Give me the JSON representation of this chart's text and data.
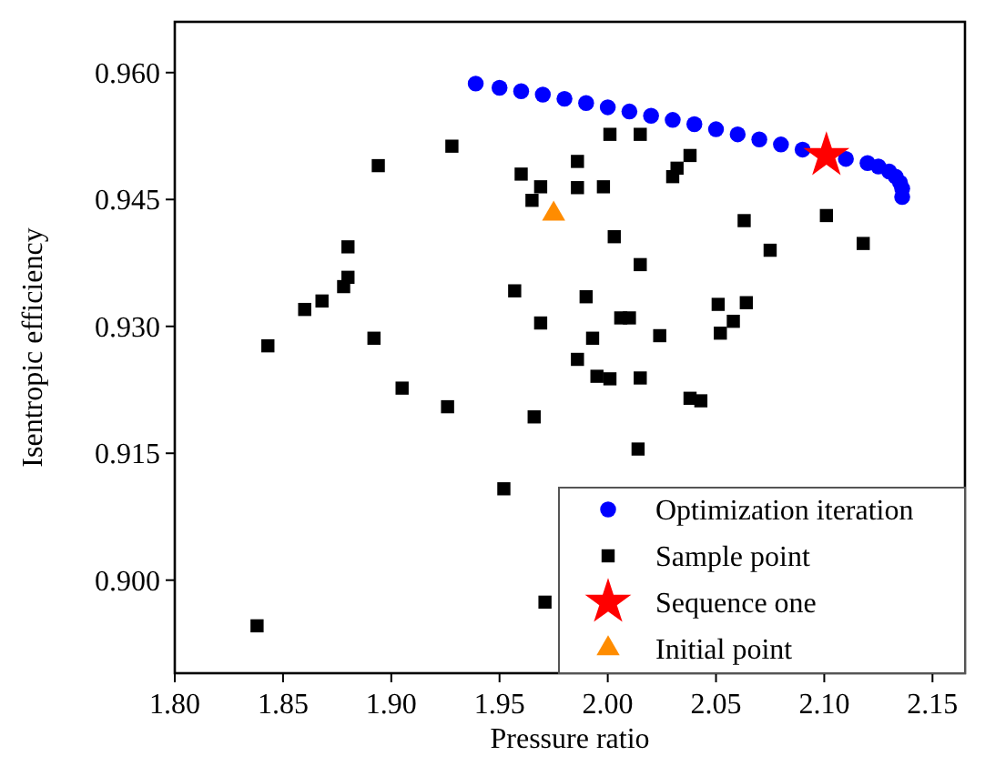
{
  "chart_data": {
    "type": "scatter",
    "xlabel": "Pressure ratio",
    "ylabel": "Isentropic efficiency",
    "xlim": [
      1.8,
      2.165
    ],
    "ylim": [
      0.889,
      0.966
    ],
    "xticks": [
      {
        "value": 1.8,
        "label": "1.80"
      },
      {
        "value": 1.85,
        "label": "1.85"
      },
      {
        "value": 1.9,
        "label": "1.90"
      },
      {
        "value": 1.95,
        "label": "1.95"
      },
      {
        "value": 2.0,
        "label": "2.00"
      },
      {
        "value": 2.05,
        "label": "2.05"
      },
      {
        "value": 2.1,
        "label": "2.10"
      },
      {
        "value": 2.15,
        "label": "2.15"
      }
    ],
    "yticks": [
      {
        "value": 0.9,
        "label": "0.900"
      },
      {
        "value": 0.915,
        "label": "0.915"
      },
      {
        "value": 0.93,
        "label": "0.930"
      },
      {
        "value": 0.945,
        "label": "0.945"
      },
      {
        "value": 0.96,
        "label": "0.960"
      }
    ],
    "grid": false,
    "legend": "bottom right",
    "series": [
      {
        "name": "Optimization iteration",
        "color": "#0000ff",
        "marker": "circle",
        "x": [
          1.939,
          1.95,
          1.96,
          1.97,
          1.98,
          1.99,
          2.0,
          2.01,
          2.02,
          2.03,
          2.04,
          2.05,
          2.06,
          2.07,
          2.08,
          2.09,
          2.11,
          2.12,
          2.125,
          2.13,
          2.133,
          2.135,
          2.136,
          2.136
        ],
        "values": [
          0.9587,
          0.9582,
          0.9578,
          0.9574,
          0.9569,
          0.9564,
          0.9559,
          0.9554,
          0.9549,
          0.9544,
          0.9539,
          0.9533,
          0.9527,
          0.9521,
          0.9515,
          0.9509,
          0.9498,
          0.9493,
          0.9489,
          0.9483,
          0.9477,
          0.947,
          0.9463,
          0.9453
        ]
      },
      {
        "name": "Sample point",
        "color": "#000000",
        "marker": "square",
        "x": [
          1.928,
          1.894,
          1.96,
          1.969,
          1.965,
          1.88,
          1.88,
          1.878,
          1.868,
          1.86,
          1.957,
          1.969,
          1.843,
          1.892,
          2.001,
          2.015,
          2.038,
          2.032,
          2.03,
          1.986,
          1.986,
          1.998,
          2.003,
          2.015,
          2.063,
          2.101,
          2.118,
          2.075,
          1.99,
          2.006,
          2.01,
          1.993,
          2.024,
          2.051,
          2.064,
          2.058,
          2.052,
          1.986,
          1.995,
          2.001,
          2.015,
          2.038,
          2.043,
          1.966,
          2.014,
          1.971,
          1.905,
          1.926,
          1.952,
          1.838
        ],
        "values": [
          0.9513,
          0.949,
          0.948,
          0.9465,
          0.9449,
          0.9394,
          0.9358,
          0.9347,
          0.933,
          0.932,
          0.9342,
          0.9304,
          0.9277,
          0.9286,
          0.9527,
          0.9527,
          0.9502,
          0.9487,
          0.9477,
          0.9495,
          0.9464,
          0.9465,
          0.9406,
          0.9373,
          0.9425,
          0.9431,
          0.9398,
          0.939,
          0.9335,
          0.931,
          0.931,
          0.9286,
          0.9289,
          0.9326,
          0.9328,
          0.9306,
          0.9292,
          0.9261,
          0.9241,
          0.9238,
          0.9239,
          0.9215,
          0.9212,
          0.9193,
          0.9155,
          0.8974,
          0.9227,
          0.9205,
          0.9108,
          0.8946
        ]
      },
      {
        "name": "Sequence one",
        "color": "#ff0000",
        "marker": "star",
        "x": [
          2.101
        ],
        "values": [
          0.9502
        ]
      },
      {
        "name": "Initial point",
        "color": "#ff8c00",
        "marker": "triangle",
        "x": [
          1.975
        ],
        "values": [
          0.9433
        ]
      }
    ]
  }
}
